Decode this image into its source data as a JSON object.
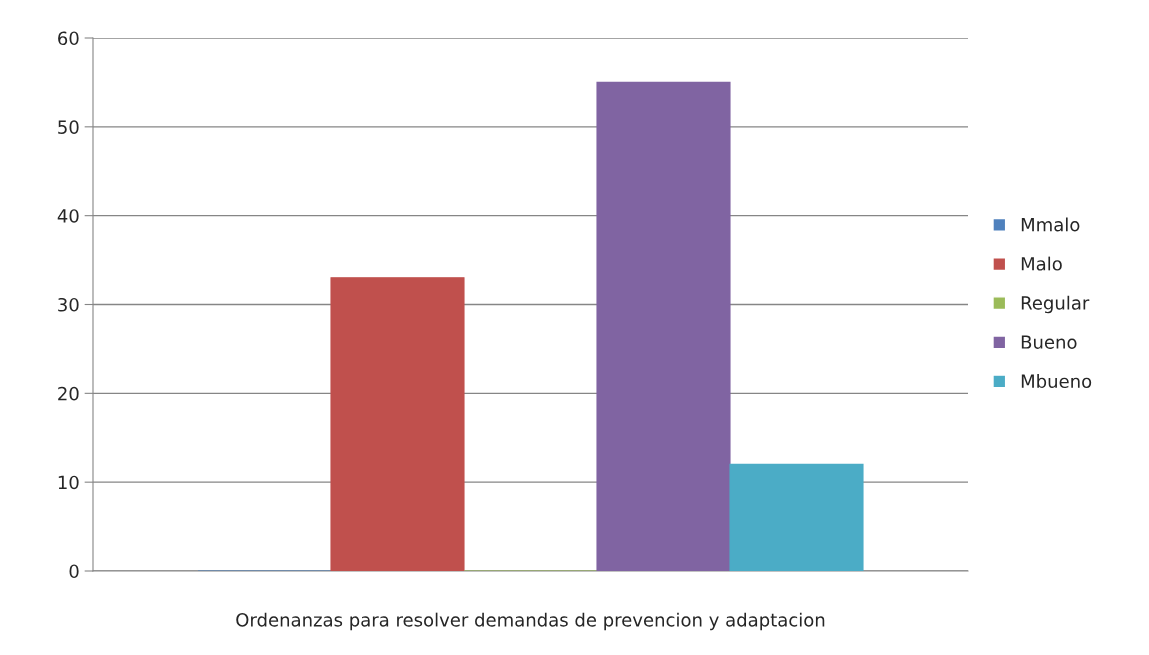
{
  "chart_data": {
    "type": "bar",
    "categories": [
      "Ordenanzas para resolver demandas de prevencion y adaptacion"
    ],
    "series": [
      {
        "name": "Mmalo",
        "color": "#4f81bd",
        "values": [
          0
        ]
      },
      {
        "name": "Malo",
        "color": "#c0504d",
        "values": [
          33
        ]
      },
      {
        "name": "Regular",
        "color": "#9bbb59",
        "values": [
          0
        ]
      },
      {
        "name": "Bueno",
        "color": "#8064a2",
        "values": [
          55
        ]
      },
      {
        "name": "Mbueno",
        "color": "#4bacc6",
        "values": [
          12
        ]
      }
    ],
    "ylim": [
      0,
      60
    ],
    "yticks": [
      0,
      10,
      20,
      30,
      40,
      50,
      60
    ],
    "grid": "y",
    "legend": "right"
  }
}
